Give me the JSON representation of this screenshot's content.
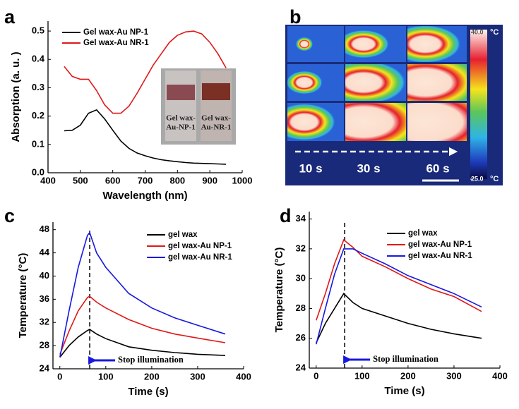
{
  "chart_data": [
    {
      "type": "line",
      "panel_label": "a",
      "xlabel": "Wavelength (nm)",
      "ylabel": "Absorption (a. u. )",
      "x": [
        450,
        475,
        500,
        525,
        550,
        575,
        600,
        625,
        650,
        675,
        700,
        725,
        750,
        775,
        800,
        825,
        850,
        875,
        900,
        925,
        950
      ],
      "series": [
        {
          "name": "Gel wax-Au NP-1",
          "color": "#000000",
          "values": [
            0.148,
            0.15,
            0.168,
            0.21,
            0.222,
            0.19,
            0.15,
            0.112,
            0.086,
            0.07,
            0.06,
            0.052,
            0.046,
            0.042,
            0.039,
            0.036,
            0.034,
            0.033,
            0.032,
            0.031,
            0.03
          ]
        },
        {
          "name": "Gel wax-Au NR-1",
          "color": "#e01818",
          "values": [
            0.375,
            0.34,
            0.33,
            0.33,
            0.29,
            0.24,
            0.21,
            0.21,
            0.235,
            0.28,
            0.33,
            0.38,
            0.42,
            0.46,
            0.485,
            0.497,
            0.5,
            0.49,
            0.46,
            0.42,
            0.37
          ]
        }
      ],
      "xlim": [
        400,
        1000
      ],
      "xticks": [
        400,
        500,
        600,
        700,
        800,
        900,
        1000
      ],
      "ylim": [
        0,
        0.535
      ],
      "yticks": [
        {
          "value": 0,
          "label": "0.0"
        },
        0.1,
        0.2,
        0.3,
        0.4,
        0.5
      ],
      "inset_labels": [
        [
          "Gel wax-",
          "Au-NP-1"
        ],
        [
          "Gel wax-",
          "Au-NR-1"
        ]
      ]
    },
    {
      "type": "thermal-image",
      "panel_label": "b",
      "time_labels": [
        "10 s",
        "30 s",
        "60 s"
      ],
      "colorbar_ticks": [
        {
          "value": 40,
          "label": "40.0"
        },
        {
          "value": 25,
          "label": "25.0"
        }
      ],
      "colorbar_unit": "°C"
    },
    {
      "type": "line",
      "panel_label": "c",
      "xlabel": "Time (s)",
      "ylabel": "Temperature (°C)",
      "x": [
        0,
        20,
        40,
        60,
        65,
        80,
        100,
        150,
        200,
        250,
        300,
        360
      ],
      "series": [
        {
          "name": "gel wax",
          "color": "#000000",
          "values": [
            26,
            28,
            29.5,
            30.6,
            30.8,
            30,
            29.2,
            27.8,
            27.2,
            26.8,
            26.5,
            26.3
          ]
        },
        {
          "name": "gel wax-Au NP-1",
          "color": "#e01818",
          "values": [
            26.5,
            30.5,
            34,
            36.3,
            36.5,
            35.5,
            34.5,
            32.5,
            31,
            30,
            29.3,
            28.5
          ]
        },
        {
          "name": "gel wax-Au NR-1",
          "color": "#1818e0",
          "values": [
            26,
            34,
            41.5,
            47,
            47.5,
            44,
            41.5,
            37,
            34.5,
            32.8,
            31.5,
            30
          ]
        }
      ],
      "xlim": [
        -15,
        400
      ],
      "xticks": [
        0,
        100,
        200,
        300,
        400
      ],
      "ylim": [
        24,
        49.3
      ],
      "yticks": [
        24,
        28,
        32,
        36,
        40,
        44,
        48
      ],
      "marker_x": 65,
      "annotation": "Stop illumination"
    },
    {
      "type": "line",
      "panel_label": "d",
      "xlabel": "Time (s)",
      "ylabel": "Temperature (°C)",
      "x": [
        0,
        20,
        40,
        60,
        80,
        100,
        150,
        200,
        250,
        300,
        360
      ],
      "series": [
        {
          "name": "gel wax",
          "color": "#000000",
          "values": [
            25.7,
            27,
            28,
            29,
            28.4,
            28,
            27.5,
            27,
            26.6,
            26.3,
            26
          ]
        },
        {
          "name": "gel wax-Au NP-1",
          "color": "#e01818",
          "values": [
            27.2,
            29,
            31,
            32.6,
            32.1,
            31.5,
            30.8,
            30,
            29.3,
            28.8,
            27.8
          ]
        },
        {
          "name": "gel wax-Au NR-1",
          "color": "#1818e0",
          "values": [
            25.6,
            28,
            30.3,
            32,
            32,
            31.7,
            31,
            30.2,
            29.6,
            29,
            28.1
          ]
        }
      ],
      "xlim": [
        -15,
        400
      ],
      "xticks": [
        0,
        100,
        200,
        300,
        400
      ],
      "ylim": [
        24,
        34.5
      ],
      "yticks": [
        24,
        26,
        28,
        30,
        32,
        34
      ],
      "marker_x": 62,
      "annotation": "Stop illumination"
    }
  ]
}
